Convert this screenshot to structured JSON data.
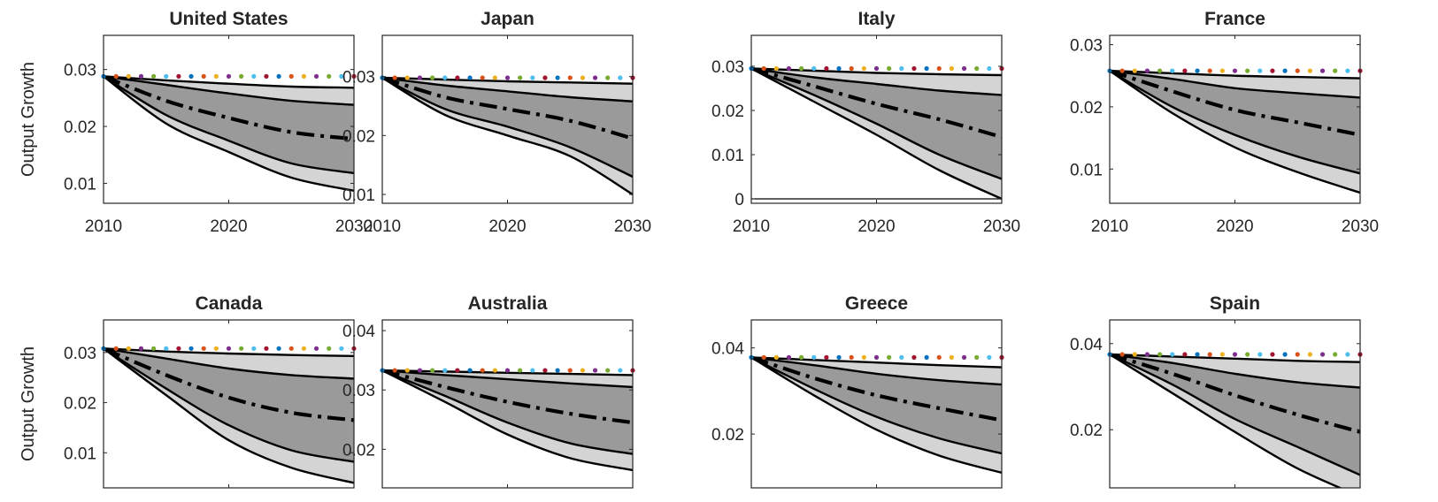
{
  "figure": {
    "ylabel": "Output Growth"
  },
  "chart_data": [
    {
      "type": "area",
      "title": "United States",
      "xlabel": "",
      "ylabel": "Output Growth",
      "xlim": [
        2010,
        2030
      ],
      "ylim": [
        0.0065,
        0.036
      ],
      "xticks": [
        2010,
        2020,
        2030
      ],
      "yticks": [
        0.01,
        0.02,
        0.03
      ],
      "ytick_labels": [
        "0.01",
        "0.02",
        "0.03"
      ],
      "x": [
        2010,
        2015,
        2020,
        2025,
        2030
      ],
      "bands": {
        "outer_upper": [
          0.0288,
          0.0281,
          0.0275,
          0.027,
          0.0268
        ],
        "inner_upper": [
          0.0288,
          0.0273,
          0.0258,
          0.0245,
          0.0238
        ],
        "median": [
          0.0288,
          0.0245,
          0.0215,
          0.019,
          0.0178
        ],
        "inner_lower": [
          0.0288,
          0.022,
          0.0175,
          0.0135,
          0.0118
        ],
        "outer_lower": [
          0.0288,
          0.0205,
          0.0155,
          0.011,
          0.0087
        ]
      },
      "baseline": {
        "value": 0.0288,
        "dotted": true
      },
      "zero_line": false
    },
    {
      "type": "area",
      "title": "Japan",
      "xlabel": "",
      "ylabel": "",
      "xlim": [
        2010,
        2030
      ],
      "ylim": [
        0.0085,
        0.037
      ],
      "xticks": [
        2010,
        2020,
        2030
      ],
      "yticks": [
        0.01,
        0.02,
        0.03
      ],
      "ytick_labels": [
        "0.01",
        "0.02",
        "0.03"
      ],
      "x": [
        2010,
        2015,
        2020,
        2025,
        2030
      ],
      "bands": {
        "outer_upper": [
          0.0298,
          0.0295,
          0.0292,
          0.029,
          0.0288
        ],
        "inner_upper": [
          0.0298,
          0.0285,
          0.0275,
          0.0265,
          0.0258
        ],
        "median": [
          0.0298,
          0.0265,
          0.0245,
          0.0225,
          0.0195
        ],
        "inner_lower": [
          0.0298,
          0.0245,
          0.0215,
          0.018,
          0.013
        ],
        "outer_lower": [
          0.0298,
          0.0235,
          0.02,
          0.0165,
          0.01
        ]
      },
      "baseline": {
        "value": 0.0298,
        "dotted": true
      },
      "zero_line": false
    },
    {
      "type": "area",
      "title": "Italy",
      "xlabel": "",
      "ylabel": "",
      "xlim": [
        2010,
        2030
      ],
      "ylim": [
        -0.001,
        0.037
      ],
      "xticks": [
        2010,
        2020,
        2030
      ],
      "yticks": [
        0,
        0.01,
        0.02,
        0.03
      ],
      "ytick_labels": [
        "0",
        "0.01",
        "0.02",
        "0.03"
      ],
      "x": [
        2010,
        2015,
        2020,
        2025,
        2030
      ],
      "bands": {
        "outer_upper": [
          0.0295,
          0.029,
          0.0285,
          0.0282,
          0.028
        ],
        "inner_upper": [
          0.0295,
          0.0275,
          0.026,
          0.0245,
          0.0235
        ],
        "median": [
          0.0295,
          0.0255,
          0.0215,
          0.018,
          0.014
        ],
        "inner_lower": [
          0.0295,
          0.0235,
          0.017,
          0.01,
          0.0045
        ],
        "outer_lower": [
          0.0295,
          0.022,
          0.0145,
          0.0065,
          0.0
        ]
      },
      "baseline": {
        "value": 0.0295,
        "dotted": true
      },
      "zero_line": true
    },
    {
      "type": "area",
      "title": "France",
      "xlabel": "",
      "ylabel": "",
      "xlim": [
        2010,
        2030
      ],
      "ylim": [
        0.0045,
        0.0315
      ],
      "xticks": [
        2010,
        2020,
        2030
      ],
      "yticks": [
        0.01,
        0.02,
        0.03
      ],
      "ytick_labels": [
        "0.01",
        "0.02",
        "0.03"
      ],
      "x": [
        2010,
        2015,
        2020,
        2025,
        2030
      ],
      "bands": {
        "outer_upper": [
          0.0258,
          0.0254,
          0.025,
          0.0248,
          0.0246
        ],
        "inner_upper": [
          0.0258,
          0.0245,
          0.023,
          0.0222,
          0.0215
        ],
        "median": [
          0.0258,
          0.0225,
          0.0195,
          0.0175,
          0.0155
        ],
        "inner_lower": [
          0.0258,
          0.02,
          0.0155,
          0.012,
          0.0093
        ],
        "outer_lower": [
          0.0258,
          0.019,
          0.0135,
          0.0095,
          0.0062
        ]
      },
      "baseline": {
        "value": 0.0258,
        "dotted": true
      },
      "zero_line": false
    },
    {
      "type": "area",
      "title": "Canada",
      "xlabel": "",
      "ylabel": "Output Growth",
      "xlim": [
        2010,
        2030
      ],
      "ylim": [
        0.003,
        0.0365
      ],
      "xticks": [
        2010,
        2020,
        2030
      ],
      "yticks": [
        0.01,
        0.02,
        0.03
      ],
      "ytick_labels": [
        "0.01",
        "0.02",
        "0.03"
      ],
      "x": [
        2010,
        2015,
        2020,
        2025,
        2030
      ],
      "bands": {
        "outer_upper": [
          0.0308,
          0.0302,
          0.0298,
          0.0295,
          0.0293
        ],
        "inner_upper": [
          0.0308,
          0.0288,
          0.0268,
          0.0255,
          0.0248
        ],
        "median": [
          0.0308,
          0.0255,
          0.021,
          0.018,
          0.0165
        ],
        "inner_lower": [
          0.0308,
          0.0228,
          0.0155,
          0.0105,
          0.0082
        ],
        "outer_lower": [
          0.0308,
          0.0215,
          0.0125,
          0.007,
          0.004
        ]
      },
      "baseline": {
        "value": 0.0308,
        "dotted": true
      },
      "zero_line": false
    },
    {
      "type": "area",
      "title": "Australia",
      "xlabel": "",
      "ylabel": "",
      "xlim": [
        2010,
        2030
      ],
      "ylim": [
        0.0135,
        0.0418
      ],
      "xticks": [
        2010,
        2020,
        2030
      ],
      "yticks": [
        0.02,
        0.03,
        0.04
      ],
      "ytick_labels": [
        "0.02",
        "0.03",
        "0.04"
      ],
      "x": [
        2010,
        2015,
        2020,
        2025,
        2030
      ],
      "bands": {
        "outer_upper": [
          0.0333,
          0.0331,
          0.0329,
          0.0327,
          0.0325
        ],
        "inner_upper": [
          0.0333,
          0.0325,
          0.0318,
          0.0311,
          0.0305
        ],
        "median": [
          0.0333,
          0.0305,
          0.028,
          0.026,
          0.0245
        ],
        "inner_lower": [
          0.0333,
          0.029,
          0.0245,
          0.021,
          0.0192
        ],
        "outer_lower": [
          0.0333,
          0.028,
          0.0225,
          0.0185,
          0.0165
        ]
      },
      "baseline": {
        "value": 0.0333,
        "dotted": true
      },
      "zero_line": false
    },
    {
      "type": "area",
      "title": "Greece",
      "xlabel": "",
      "ylabel": "",
      "xlim": [
        2010,
        2030
      ],
      "ylim": [
        0.0075,
        0.0465
      ],
      "xticks": [
        2010,
        2020,
        2030
      ],
      "yticks": [
        0.02,
        0.04
      ],
      "ytick_labels": [
        "0.02",
        "0.04"
      ],
      "x": [
        2010,
        2015,
        2020,
        2025,
        2030
      ],
      "bands": {
        "outer_upper": [
          0.0378,
          0.0372,
          0.0366,
          0.036,
          0.0355
        ],
        "inner_upper": [
          0.0378,
          0.036,
          0.034,
          0.0325,
          0.0315
        ],
        "median": [
          0.0378,
          0.033,
          0.029,
          0.026,
          0.0232
        ],
        "inner_lower": [
          0.0378,
          0.0305,
          0.024,
          0.019,
          0.0155
        ],
        "outer_lower": [
          0.0378,
          0.029,
          0.021,
          0.015,
          0.011
        ]
      },
      "baseline": {
        "value": 0.0378,
        "dotted": true
      },
      "zero_line": false
    },
    {
      "type": "area",
      "title": "Spain",
      "xlabel": "",
      "ylabel": "",
      "xlim": [
        2010,
        2030
      ],
      "ylim": [
        0.0065,
        0.0455
      ],
      "xticks": [
        2010,
        2020,
        2030
      ],
      "yticks": [
        0.02,
        0.04
      ],
      "ytick_labels": [
        "0.02",
        "0.04"
      ],
      "x": [
        2010,
        2015,
        2020,
        2025,
        2030
      ],
      "bands": {
        "outer_upper": [
          0.0375,
          0.037,
          0.0365,
          0.036,
          0.0357
        ],
        "inner_upper": [
          0.0375,
          0.0355,
          0.033,
          0.031,
          0.0298
        ],
        "median": [
          0.0375,
          0.033,
          0.028,
          0.0235,
          0.0195
        ],
        "inner_lower": [
          0.0375,
          0.0305,
          0.0225,
          0.016,
          0.0095
        ],
        "outer_lower": [
          0.0375,
          0.0285,
          0.0195,
          0.011,
          0.0045
        ]
      },
      "baseline": {
        "value": 0.0375,
        "dotted": true
      },
      "zero_line": false
    }
  ]
}
